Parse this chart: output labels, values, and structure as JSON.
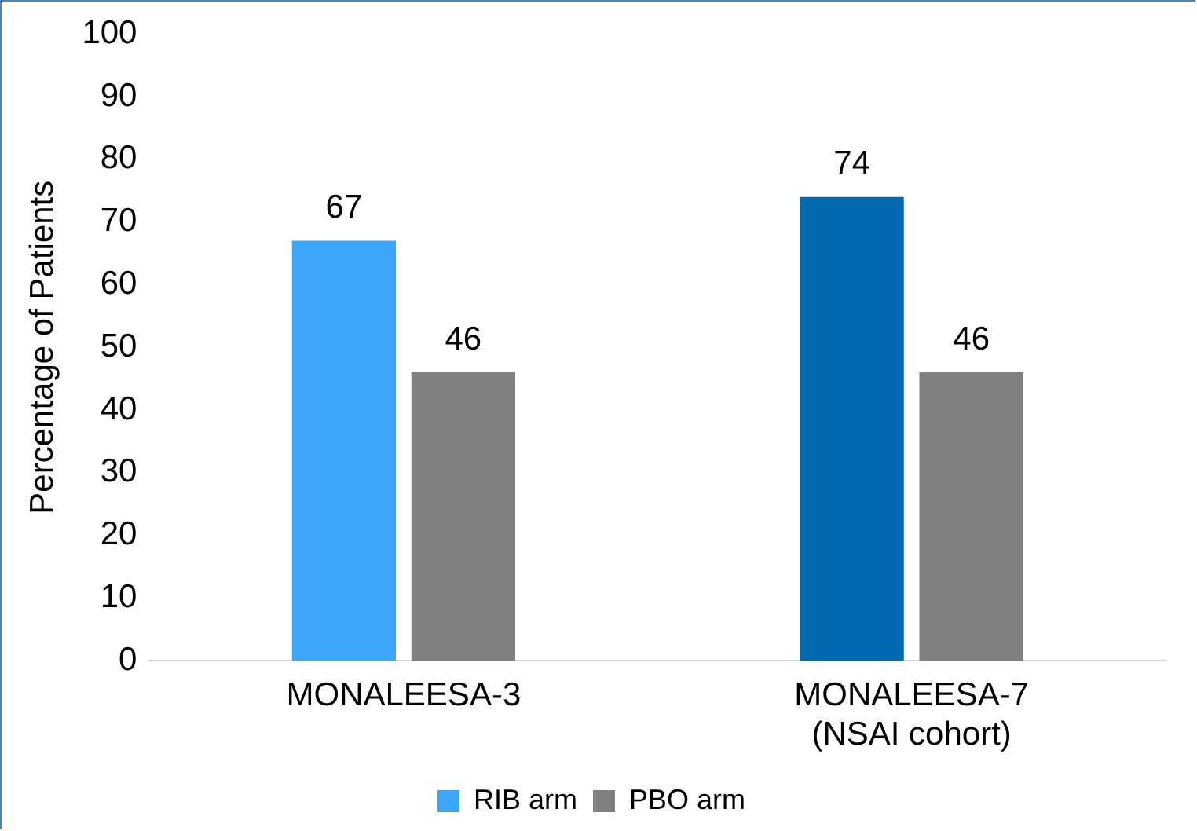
{
  "chart_data": {
    "type": "bar",
    "ylabel": "Percentage of Patients",
    "categories": [
      "MONALEESA-3",
      "MONALEESA-7\n(NSAI cohort)"
    ],
    "series": [
      {
        "name": "RIB arm",
        "color": "#3ba6f7",
        "colors": [
          "#3ba6f7",
          "#0069b1"
        ],
        "values": [
          67,
          74
        ]
      },
      {
        "name": "PBO arm",
        "color": "#808082",
        "values": [
          46,
          46
        ]
      }
    ],
    "ylim": [
      0,
      100
    ],
    "yticks": [
      0,
      10,
      20,
      30,
      40,
      50,
      60,
      70,
      80,
      90,
      100
    ],
    "grid": false,
    "legend": "bottom",
    "data_labels": true
  }
}
